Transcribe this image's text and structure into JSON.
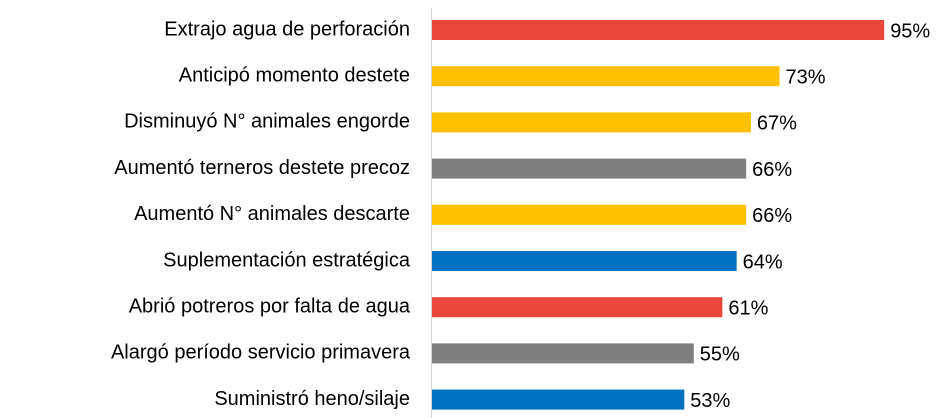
{
  "chart_data": {
    "type": "barh",
    "categories": [
      "Extrajo agua de perforación",
      "Anticipó momento destete",
      "Disminuyó N° animales engorde",
      "Aumentó terneros destete precoz",
      "Aumentó N° animales descarte",
      "Suplementación estratégica",
      "Abrió potreros por falta de agua",
      "Alargó período servicio primavera",
      "Suministró heno/silaje"
    ],
    "values": [
      95,
      73,
      67,
      66,
      66,
      64,
      61,
      55,
      53
    ],
    "value_labels": [
      "95%",
      "73%",
      "67%",
      "66%",
      "66%",
      "64%",
      "61%",
      "55%",
      "53%"
    ],
    "colors": [
      "#e8473a",
      "#ffc000",
      "#ffc000",
      "#7f7f7f",
      "#ffc000",
      "#0070c0",
      "#e8473a",
      "#7f7f7f",
      "#0070c0"
    ],
    "xlim": [
      0,
      100
    ]
  }
}
